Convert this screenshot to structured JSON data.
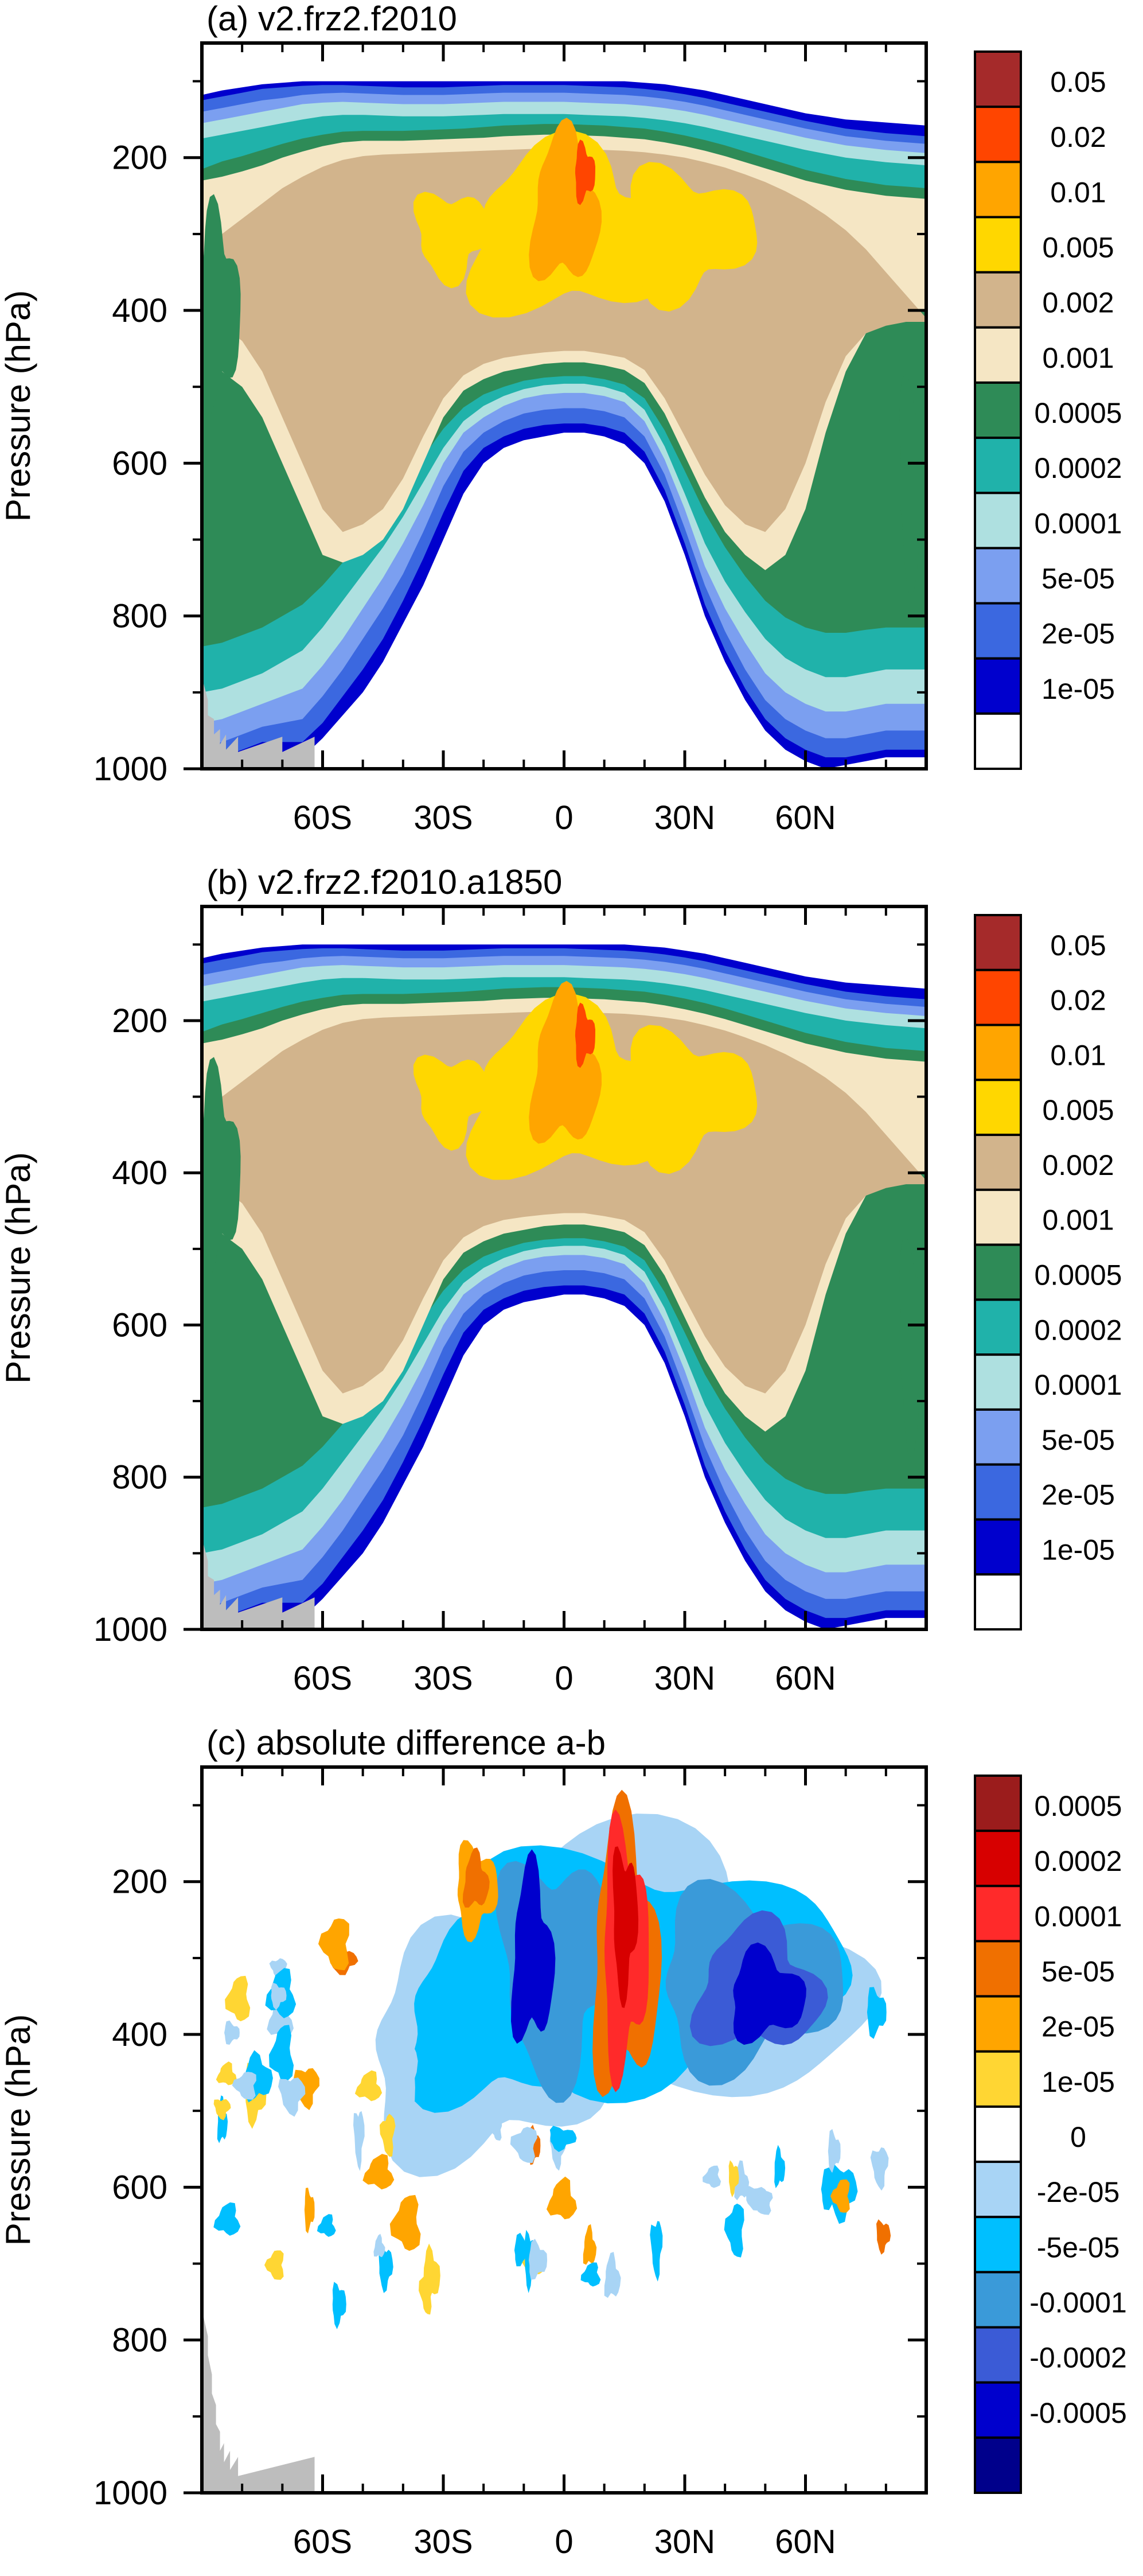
{
  "chart_data": [
    {
      "type": "heatmap",
      "title": "(a) v2.frz2.f2010",
      "xlabel": "",
      "ylabel": "Pressure (hPa)",
      "x_ticks": [
        "60S",
        "30S",
        "0",
        "30N",
        "60N"
      ],
      "x_tick_values": [
        -60,
        -30,
        0,
        30,
        60
      ],
      "xlim": [
        -90,
        90
      ],
      "y_ticks": [
        "200",
        "400",
        "600",
        "800",
        "1000"
      ],
      "y_tick_values": [
        200,
        400,
        600,
        800,
        1000
      ],
      "ylim": [
        1000,
        50
      ],
      "legend_position": "right",
      "colorbar": {
        "labels": [
          "0.05",
          "0.02",
          "0.01",
          "0.005",
          "0.002",
          "0.001",
          "0.0005",
          "0.0002",
          "0.0001",
          "5e-05",
          "2e-05",
          "1e-05"
        ],
        "colors": [
          "#a52a2a",
          "#ff4500",
          "#ffa500",
          "#ffd700",
          "#d2b48c",
          "#f5e6c4",
          "#2e8b57",
          "#20b2aa",
          "#aee0e0",
          "#7b9ff0",
          "#3b68e0",
          "#0000cd",
          "#ffffff"
        ]
      }
    },
    {
      "type": "heatmap",
      "title": "(b) v2.frz2.f2010.a1850",
      "xlabel": "",
      "ylabel": "Pressure (hPa)",
      "x_ticks": [
        "60S",
        "30S",
        "0",
        "30N",
        "60N"
      ],
      "x_tick_values": [
        -60,
        -30,
        0,
        30,
        60
      ],
      "xlim": [
        -90,
        90
      ],
      "y_ticks": [
        "200",
        "400",
        "600",
        "800",
        "1000"
      ],
      "y_tick_values": [
        200,
        400,
        600,
        800,
        1000
      ],
      "ylim": [
        1000,
        50
      ],
      "legend_position": "right",
      "colorbar": {
        "labels": [
          "0.05",
          "0.02",
          "0.01",
          "0.005",
          "0.002",
          "0.001",
          "0.0005",
          "0.0002",
          "0.0001",
          "5e-05",
          "2e-05",
          "1e-05"
        ],
        "colors": [
          "#a52a2a",
          "#ff4500",
          "#ffa500",
          "#ffd700",
          "#d2b48c",
          "#f5e6c4",
          "#2e8b57",
          "#20b2aa",
          "#aee0e0",
          "#7b9ff0",
          "#3b68e0",
          "#0000cd",
          "#ffffff"
        ]
      }
    },
    {
      "type": "heatmap",
      "title": "(c) absolute difference a-b",
      "xlabel": "",
      "ylabel": "Pressure (hPa)",
      "x_ticks": [
        "60S",
        "30S",
        "0",
        "30N",
        "60N"
      ],
      "x_tick_values": [
        -60,
        -30,
        0,
        30,
        60
      ],
      "xlim": [
        -90,
        90
      ],
      "y_ticks": [
        "200",
        "400",
        "600",
        "800",
        "1000"
      ],
      "y_tick_values": [
        200,
        400,
        600,
        800,
        1000
      ],
      "ylim": [
        1000,
        50
      ],
      "legend_position": "right",
      "colorbar": {
        "labels": [
          "0.0005",
          "0.0002",
          "0.0001",
          "5e-05",
          "2e-05",
          "1e-05",
          "0",
          "-2e-05",
          "-5e-05",
          "-0.0001",
          "-0.0002",
          "-0.0005"
        ],
        "colors": [
          "#9b1c1c",
          "#d70000",
          "#ff2a2a",
          "#f07000",
          "#ffa500",
          "#ffd633",
          "#ffffff",
          "#a8d4f5",
          "#00bfff",
          "#3a9ad9",
          "#3b5bd6",
          "#0000cd",
          "#00008b"
        ]
      }
    }
  ]
}
